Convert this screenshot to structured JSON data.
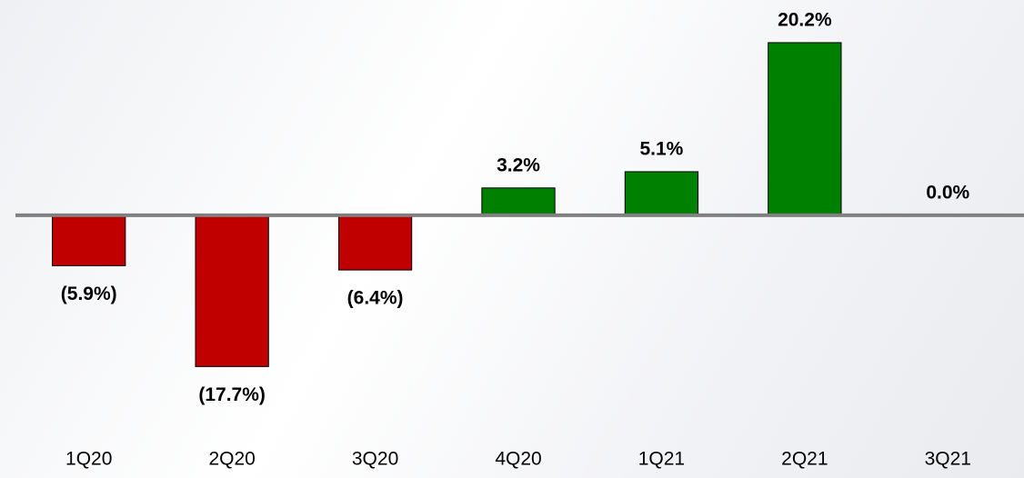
{
  "chart_data": {
    "type": "bar",
    "categories": [
      "1Q20",
      "2Q20",
      "3Q20",
      "4Q20",
      "1Q21",
      "2Q21",
      "3Q21"
    ],
    "values": [
      -5.9,
      -17.7,
      -6.4,
      3.2,
      5.1,
      20.2,
      0.0
    ],
    "value_labels": [
      "(5.9%)",
      "(17.7%)",
      "(6.4%)",
      "3.2%",
      "5.1%",
      "20.2%",
      "0.0%"
    ],
    "colors": [
      "#c00000",
      "#c00000",
      "#c00000",
      "#008000",
      "#008000",
      "#008000",
      "#008000"
    ],
    "ylim": [
      -20,
      22
    ]
  }
}
